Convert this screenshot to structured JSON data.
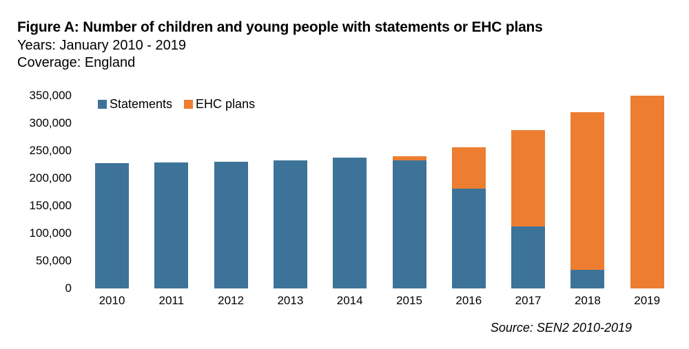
{
  "header": {
    "title": "Figure A: Number of children and young people with statements or EHC plans",
    "years_line": "Years: January 2010 - 2019",
    "coverage_line": "Coverage: England"
  },
  "source": "Source: SEN2 2010-2019",
  "chart_data": {
    "type": "bar",
    "stacked": true,
    "title": "Figure A: Number of children and young people with statements or EHC plans",
    "xlabel": "",
    "ylabel": "",
    "categories": [
      "2010",
      "2011",
      "2012",
      "2013",
      "2014",
      "2015",
      "2016",
      "2017",
      "2018",
      "2019"
    ],
    "series": [
      {
        "name": "Statements",
        "slug": "statements",
        "color": "#3d7399",
        "values": [
          228000,
          229000,
          230000,
          233000,
          237000,
          233000,
          181000,
          112000,
          34000,
          0
        ]
      },
      {
        "name": "EHC plans",
        "slug": "ehc-plans",
        "color": "#ed7d31",
        "values": [
          0,
          0,
          0,
          0,
          0,
          7000,
          75000,
          176000,
          286000,
          350000
        ]
      }
    ],
    "ylim": [
      0,
      350000
    ],
    "yticks": [
      0,
      50000,
      100000,
      150000,
      200000,
      250000,
      300000,
      350000
    ],
    "ytick_labels_top_to_bottom": [
      "350,000",
      "300,000",
      "250,000",
      "200,000",
      "150,000",
      "100,000",
      "50,000",
      "0"
    ],
    "grid": false,
    "legend_position": "top-left"
  }
}
